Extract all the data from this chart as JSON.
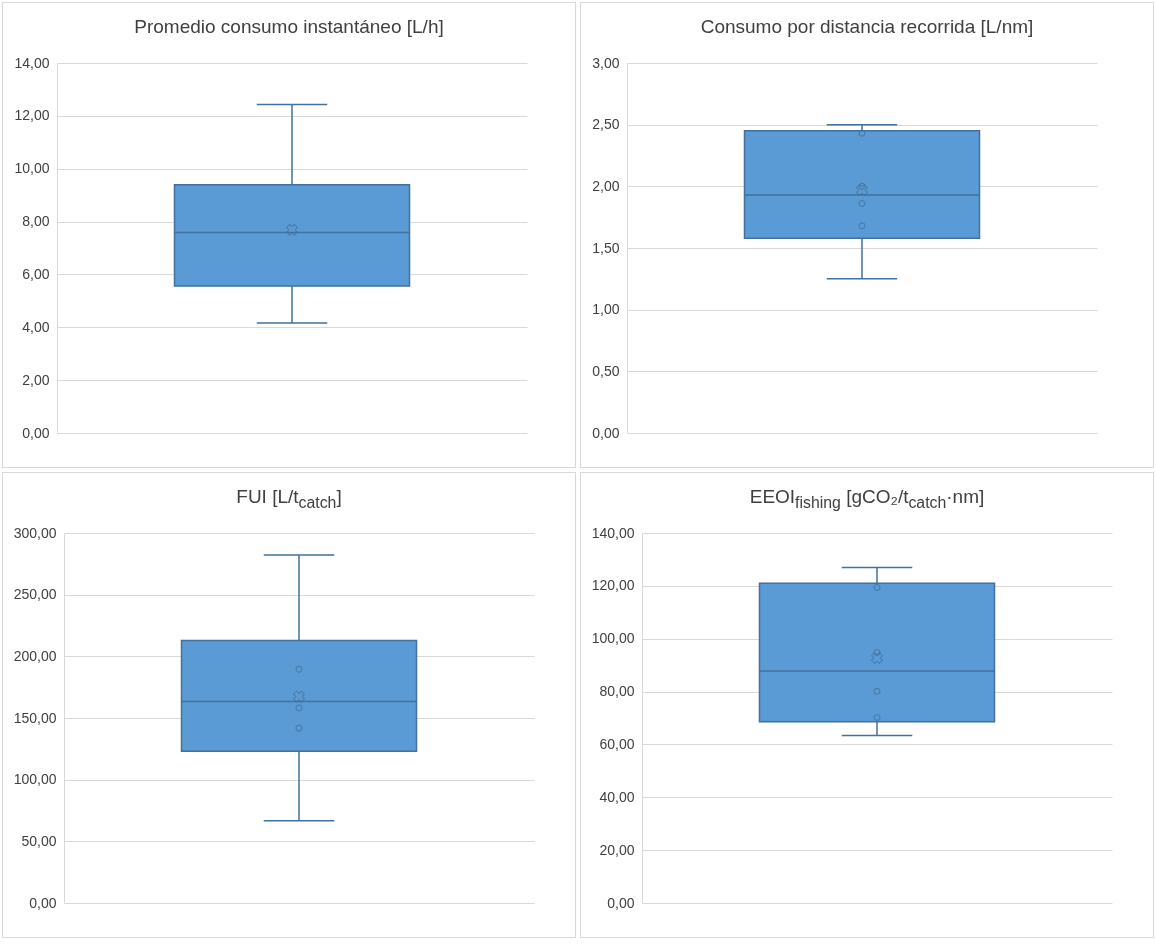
{
  "chart_data": [
    {
      "type": "box",
      "title": "Promedio consumo instantáneo [L/h]",
      "categories": [
        null
      ],
      "grid": "y",
      "ylim": [
        0,
        14
      ],
      "yticks": [
        {
          "value": 0,
          "label": "0,00"
        },
        {
          "value": 2,
          "label": "2,00"
        },
        {
          "value": 4,
          "label": "4,00"
        },
        {
          "value": 6,
          "label": "6,00"
        },
        {
          "value": 8,
          "label": "8,00"
        },
        {
          "value": 10,
          "label": "10,00"
        },
        {
          "value": 12,
          "label": "12,00"
        },
        {
          "value": 14,
          "label": "14,00"
        }
      ],
      "series": [
        {
          "color": "#5b9bd5",
          "boxes": [
            {
              "low": 4.16,
              "q1": 5.56,
              "median": 7.59,
              "q3": 9.39,
              "high": 12.43,
              "mean": 7.69
            }
          ]
        }
      ]
    },
    {
      "type": "box",
      "title": "Consumo por distancia recorrida [L/nm]",
      "categories": [
        null
      ],
      "grid": "y",
      "marker": "circle",
      "ylim": [
        0,
        3
      ],
      "yticks": [
        {
          "value": 0,
          "label": "0,00"
        },
        {
          "value": 0.5,
          "label": "0,50"
        },
        {
          "value": 1,
          "label": "1,00"
        },
        {
          "value": 1.5,
          "label": "1,50"
        },
        {
          "value": 2,
          "label": "2,00"
        },
        {
          "value": 2.5,
          "label": "2,50"
        },
        {
          "value": 3,
          "label": "3,00"
        }
      ],
      "series": [
        {
          "color": "#5b9bd5",
          "boxes": [
            {
              "low": 1.25,
              "q1": 1.58,
              "median": 1.93,
              "q3": 2.45,
              "high": 2.5,
              "mean": 1.97,
              "outliers": [
                2.43,
                2.0,
                1.86,
                1.68
              ]
            }
          ]
        }
      ]
    },
    {
      "type": "box",
      "title": "FUI [L/t$_{catch}$]",
      "categories": [
        null
      ],
      "grid": "y",
      "marker": "circle",
      "ylim": [
        0,
        300
      ],
      "yticks": [
        {
          "value": 0,
          "label": "0,00"
        },
        {
          "value": 50,
          "label": "50,00"
        },
        {
          "value": 100,
          "label": "100,00"
        },
        {
          "value": 150,
          "label": "150,00"
        },
        {
          "value": 200,
          "label": "200,00"
        },
        {
          "value": 250,
          "label": "250,00"
        },
        {
          "value": 300,
          "label": "300,00"
        }
      ],
      "series": [
        {
          "color": "#5b9bd5",
          "boxes": [
            {
              "low": 66.7,
              "q1": 123.1,
              "median": 163.4,
              "q3": 212.8,
              "high": 282.2,
              "mean": 167.4,
              "outliers": [
                189.5,
                158.2,
                141.8
              ]
            }
          ]
        }
      ]
    },
    {
      "type": "box",
      "title": "EEOI$_{fishing}$ [gCO₂/t$_{catch}$·nm]",
      "categories": [
        null
      ],
      "grid": "y",
      "marker": "circle",
      "ylim": [
        0,
        140
      ],
      "yticks": [
        {
          "value": 0,
          "label": "0,00"
        },
        {
          "value": 20,
          "label": "20,00"
        },
        {
          "value": 40,
          "label": "40,00"
        },
        {
          "value": 60,
          "label": "60,00"
        },
        {
          "value": 80,
          "label": "80,00"
        },
        {
          "value": 100,
          "label": "100,00"
        },
        {
          "value": 120,
          "label": "120,00"
        },
        {
          "value": 140,
          "label": "140,00"
        }
      ],
      "series": [
        {
          "color": "#5b9bd5",
          "boxes": [
            {
              "low": 63.4,
              "q1": 68.6,
              "median": 87.8,
              "q3": 121.0,
              "high": 126.9,
              "mean": 92.7,
              "outliers": [
                119.4,
                94.8,
                80.1,
                70.2
              ]
            }
          ]
        }
      ]
    }
  ]
}
